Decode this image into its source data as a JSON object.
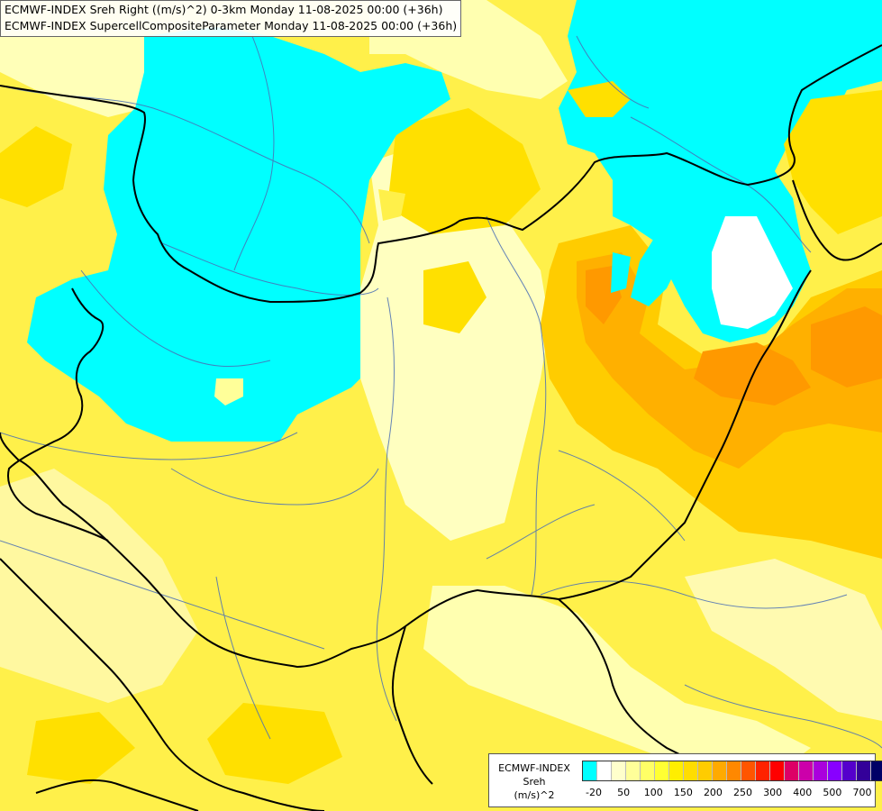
{
  "title": {
    "line1": "ECMWF-INDEX Sreh Right ((m/s)^2) 0-3km Monday 11-08-2025 00:00 (+36h)",
    "line2": "ECMWF-INDEX SupercellCompositeParameter Monday 11-08-2025 00:00 (+36h)"
  },
  "legend": {
    "line1": "ECMWF-INDEX",
    "line2": "Sreh",
    "line3": "(m/s)^2",
    "colors": [
      "#00ffff",
      "#ffffff",
      "#ffffcc",
      "#ffff99",
      "#ffff66",
      "#ffff33",
      "#ffee00",
      "#ffdd00",
      "#ffcc00",
      "#ffaa00",
      "#ff8800",
      "#ff5500",
      "#ff2200",
      "#ff0000",
      "#dd0066",
      "#cc00aa",
      "#aa00dd",
      "#8800ff",
      "#5500cc",
      "#330099",
      "#000066"
    ],
    "ticks": [
      "-20",
      "50",
      "100",
      "150",
      "200",
      "250",
      "300",
      "400",
      "500",
      "700"
    ]
  }
}
